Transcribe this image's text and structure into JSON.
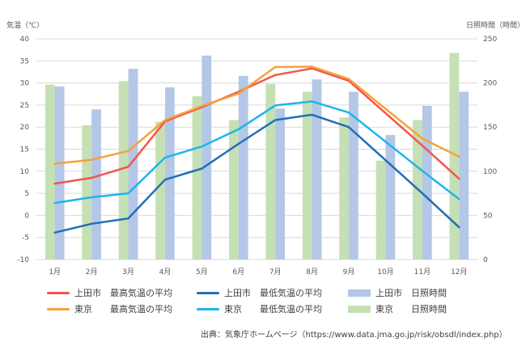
{
  "chart_data": {
    "type": "bar+line",
    "categories": [
      "1月",
      "2月",
      "3月",
      "4月",
      "5月",
      "6月",
      "7月",
      "8月",
      "9月",
      "10月",
      "11月",
      "12月"
    ],
    "y_left": {
      "label": "気温（℃）",
      "min": -10,
      "max": 40,
      "ticks": [
        -10,
        -5,
        0,
        5,
        10,
        15,
        20,
        25,
        30,
        35,
        40
      ]
    },
    "y_right": {
      "label": "日照時間（時間）",
      "min": 0,
      "max": 250,
      "ticks": [
        0,
        50,
        100,
        150,
        200,
        250
      ]
    },
    "bar_series": [
      {
        "name": "東京　　日照時間",
        "color": "#c5e0b4",
        "values": [
          198,
          152,
          202,
          156,
          185,
          158,
          199,
          190,
          161,
          112,
          158,
          234
        ]
      },
      {
        "name": "上田市　日照時間",
        "color": "#b4c7e7",
        "values": [
          196,
          170,
          216,
          195,
          231,
          208,
          171,
          204,
          190,
          141,
          174,
          190
        ]
      }
    ],
    "line_series": [
      {
        "name": "上田市　最高気温の平均",
        "color": "#f4554d",
        "values": [
          7.2,
          8.5,
          11.0,
          21.3,
          24.5,
          28.0,
          31.8,
          33.3,
          30.5,
          null,
          15.8,
          8.3
        ]
      },
      {
        "name": "東京　　最高気温の平均",
        "color": "#f4a23a",
        "values": [
          11.7,
          12.6,
          14.6,
          21.6,
          24.8,
          27.6,
          33.6,
          33.7,
          30.9,
          null,
          17.4,
          13.3
        ]
      },
      {
        "name": "上田市　最低気温の平均",
        "color": "#1f6fb5",
        "values": [
          -3.9,
          -1.9,
          -0.7,
          8.1,
          10.6,
          16.2,
          21.6,
          22.8,
          20.0,
          null,
          5.0,
          -2.7
        ]
      },
      {
        "name": "東京　　最低気温の平均",
        "color": "#1cb5ea",
        "values": [
          2.8,
          4.1,
          5.0,
          13.1,
          15.6,
          19.5,
          24.9,
          25.8,
          23.3,
          null,
          10.1,
          3.7
        ]
      }
    ],
    "legend": [
      {
        "series": "上田市　最高気温の平均",
        "kind": "line",
        "color": "#f4554d"
      },
      {
        "series": "上田市　最低気温の平均",
        "kind": "line",
        "color": "#1f6fb5"
      },
      {
        "series": "上田市　日照時間",
        "kind": "bar",
        "color": "#b4c7e7"
      },
      {
        "series": "東京　　最高気温の平均",
        "kind": "line",
        "color": "#f4a23a"
      },
      {
        "series": "東京　　最低気温の平均",
        "kind": "line",
        "color": "#1cb5ea"
      },
      {
        "series": "東京　　日照時間",
        "kind": "bar",
        "color": "#c5e0b4"
      }
    ],
    "grid": true,
    "legend_position": "bottom"
  },
  "source_text": "出典：気象庁ホームページ（https://www.data.jma.go.jp/risk/obsdl/index.php）"
}
